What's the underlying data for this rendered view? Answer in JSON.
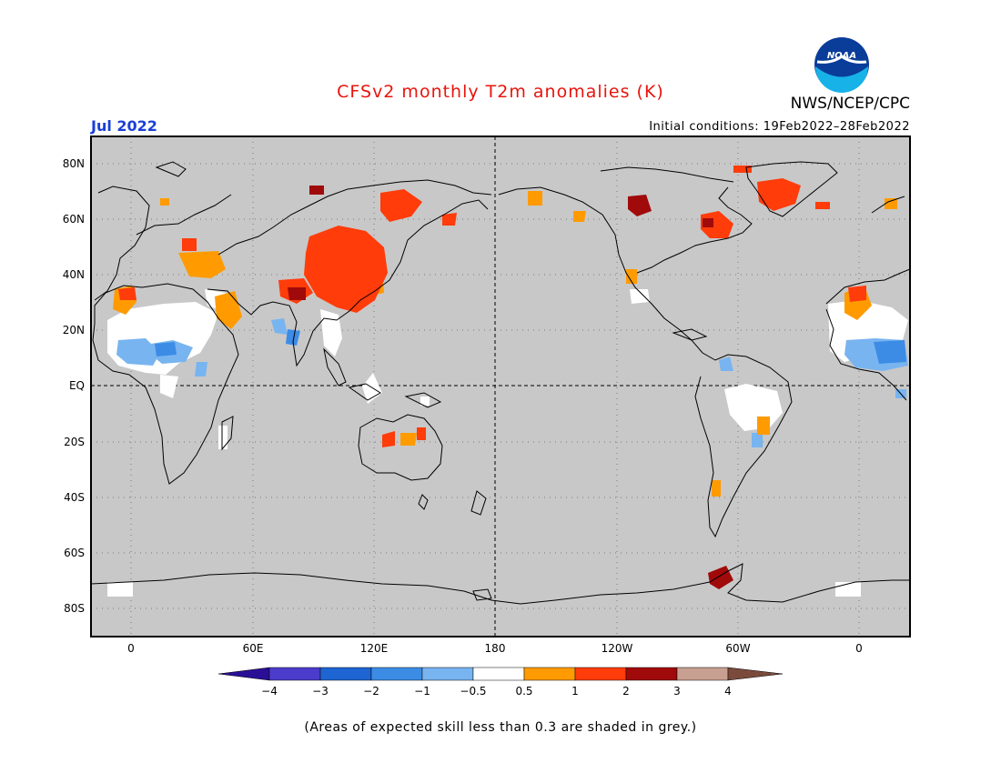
{
  "header": {
    "title": "CFSv2 monthly T2m anomalies (K)",
    "org": "NWS/NCEP/CPC",
    "logo_text": "NOAA",
    "month": "Jul 2022",
    "init": "Initial conditions: 19Feb2022–28Feb2022"
  },
  "map": {
    "lat_labels": [
      "80N",
      "60N",
      "40N",
      "20N",
      "EQ",
      "20S",
      "40S",
      "60S",
      "80S"
    ],
    "lon_labels": [
      "0",
      "60E",
      "120E",
      "180",
      "120W",
      "60W",
      "0"
    ],
    "background_color": "#c8c8c8"
  },
  "colorbar": {
    "ticks": [
      "−4",
      "−3",
      "−2",
      "−1",
      "−0.5",
      "0.5",
      "1",
      "2",
      "3",
      "4"
    ],
    "colors": [
      "#2a0f96",
      "#4b3ccc",
      "#1e64d2",
      "#3c8ce6",
      "#78b4f0",
      "#ffffff",
      "#ff9b00",
      "#ff3c0a",
      "#a00a0a",
      "#c8a091",
      "#7a4b3c"
    ]
  },
  "footnote": "(Areas of expected skill less than 0.3 are shaded in grey.)"
}
